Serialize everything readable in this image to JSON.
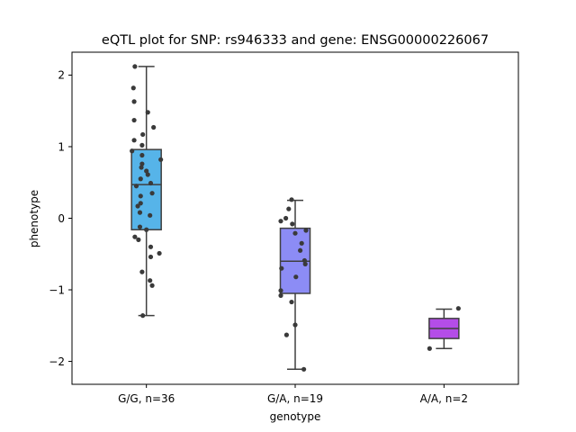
{
  "chart_data": {
    "type": "box",
    "title": "eQTL plot for SNP: rs946333 and gene: ENSG00000226067",
    "xlabel": "genotype",
    "ylabel": "phenotype",
    "ylim": [
      -2.32,
      2.32
    ],
    "yticks": [
      -2,
      -1,
      0,
      1,
      2
    ],
    "ytick_labels": [
      "−2",
      "−1",
      "0",
      "1",
      "2"
    ],
    "grid": false,
    "legend": "none",
    "categories": [
      "G/G, n=36",
      "G/A, n=19",
      "A/A, n=2"
    ],
    "colors": [
      "#56b4e9",
      "#8c8cf5",
      "#b44de8"
    ],
    "point_color": "#3a3a3a",
    "boxes": [
      {
        "q1": -0.16,
        "median": 0.47,
        "q3": 0.96,
        "whisker_low": -1.36,
        "whisker_high": 2.12
      },
      {
        "q1": -1.05,
        "median": -0.6,
        "q3": -0.14,
        "whisker_low": -2.11,
        "whisker_high": 0.25
      },
      {
        "q1": -1.68,
        "median": -1.54,
        "q3": -1.4,
        "whisker_low": -1.82,
        "whisker_high": -1.27
      }
    ],
    "points": [
      [
        {
          "dx": -0.16,
          "y": 2.12
        },
        {
          "dx": -0.18,
          "y": 1.82
        },
        {
          "dx": -0.17,
          "y": 1.63
        },
        {
          "dx": 0.02,
          "y": 1.48
        },
        {
          "dx": -0.17,
          "y": 1.37
        },
        {
          "dx": 0.1,
          "y": 1.27
        },
        {
          "dx": -0.05,
          "y": 1.17
        },
        {
          "dx": -0.17,
          "y": 1.09
        },
        {
          "dx": -0.06,
          "y": 1.02
        },
        {
          "dx": -0.2,
          "y": 0.94
        },
        {
          "dx": -0.06,
          "y": 0.88
        },
        {
          "dx": 0.2,
          "y": 0.82
        },
        {
          "dx": -0.06,
          "y": 0.76
        },
        {
          "dx": -0.07,
          "y": 0.71
        },
        {
          "dx": 0.0,
          "y": 0.66
        },
        {
          "dx": 0.02,
          "y": 0.61
        },
        {
          "dx": -0.08,
          "y": 0.55
        },
        {
          "dx": 0.06,
          "y": 0.49
        },
        {
          "dx": -0.14,
          "y": 0.45
        },
        {
          "dx": 0.08,
          "y": 0.35
        },
        {
          "dx": -0.08,
          "y": 0.31
        },
        {
          "dx": -0.08,
          "y": 0.21
        },
        {
          "dx": -0.12,
          "y": 0.17
        },
        {
          "dx": -0.09,
          "y": 0.08
        },
        {
          "dx": 0.05,
          "y": 0.04
        },
        {
          "dx": -0.09,
          "y": -0.12
        },
        {
          "dx": -0.16,
          "y": -0.26
        },
        {
          "dx": -0.11,
          "y": -0.3
        },
        {
          "dx": 0.06,
          "y": -0.4
        },
        {
          "dx": 0.18,
          "y": -0.49
        },
        {
          "dx": 0.06,
          "y": -0.54
        },
        {
          "dx": -0.06,
          "y": -0.75
        },
        {
          "dx": 0.05,
          "y": -0.87
        },
        {
          "dx": 0.08,
          "y": -0.94
        },
        {
          "dx": -0.05,
          "y": -1.36
        },
        {
          "dx": 0.0,
          "y": -0.16
        }
      ],
      [
        {
          "dx": -0.05,
          "y": 0.26
        },
        {
          "dx": -0.09,
          "y": 0.13
        },
        {
          "dx": -0.13,
          "y": 0.0
        },
        {
          "dx": -0.2,
          "y": -0.04
        },
        {
          "dx": -0.04,
          "y": -0.08
        },
        {
          "dx": 0.15,
          "y": -0.17
        },
        {
          "dx": 0.0,
          "y": -0.21
        },
        {
          "dx": 0.09,
          "y": -0.35
        },
        {
          "dx": 0.07,
          "y": -0.45
        },
        {
          "dx": 0.13,
          "y": -0.59
        },
        {
          "dx": 0.14,
          "y": -0.64
        },
        {
          "dx": -0.19,
          "y": -0.7
        },
        {
          "dx": 0.01,
          "y": -0.82
        },
        {
          "dx": -0.2,
          "y": -1.01
        },
        {
          "dx": -0.2,
          "y": -1.08
        },
        {
          "dx": -0.05,
          "y": -1.17
        },
        {
          "dx": 0.0,
          "y": -1.49
        },
        {
          "dx": -0.12,
          "y": -1.63
        },
        {
          "dx": 0.12,
          "y": -2.11
        }
      ],
      [
        {
          "dx": 0.2,
          "y": -1.26
        },
        {
          "dx": -0.2,
          "y": -1.82
        }
      ]
    ]
  }
}
